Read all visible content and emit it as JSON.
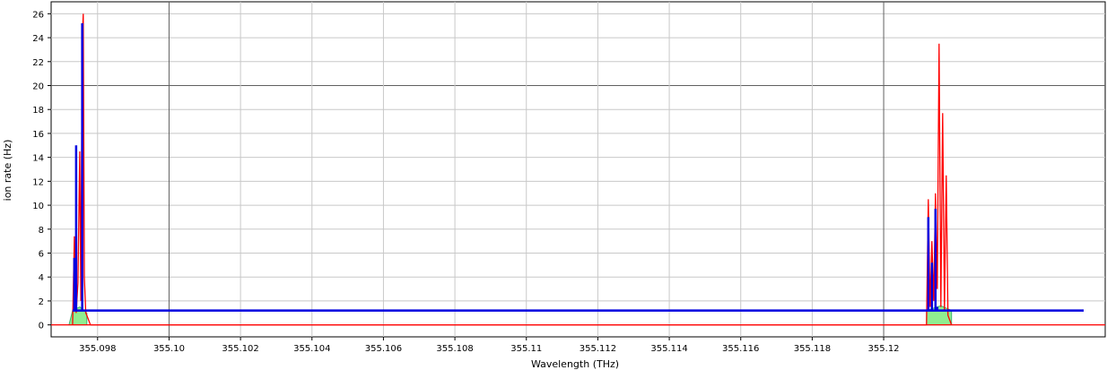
{
  "chart_data": {
    "type": "line",
    "xlabel": "Wavelength (THz)",
    "ylabel": "ion rate (Hz)",
    "xlim": [
      355.0967,
      355.1262
    ],
    "ylim": [
      -1,
      27
    ],
    "xticks": [
      355.098,
      355.1,
      355.102,
      355.104,
      355.106,
      355.108,
      355.11,
      355.112,
      355.114,
      355.116,
      355.118,
      355.12
    ],
    "xtick_labels": [
      "355.098",
      "355.10",
      "355.102",
      "355.104",
      "355.106",
      "355.108",
      "355.11",
      "355.112",
      "355.114",
      "355.116",
      "355.118",
      "355.12"
    ],
    "yticks": [
      0,
      2,
      4,
      6,
      8,
      10,
      12,
      14,
      16,
      18,
      20,
      22,
      24,
      26
    ],
    "ytick_labels": [
      "0",
      "2",
      "4",
      "6",
      "8",
      "10",
      "12",
      "14",
      "16",
      "18",
      "20",
      "22",
      "24",
      "26"
    ],
    "major_gridlines": {
      "x": [
        355.1,
        355.12
      ],
      "y": [
        20
      ]
    },
    "grid": true,
    "colors": {
      "red": "#ff0000",
      "blue": "#0000e0",
      "green_fill": "#90ee90",
      "green_edge": "#3cb371"
    },
    "series": [
      {
        "color": "red",
        "style": "line",
        "points": [
          [
            355.0973,
            0
          ],
          [
            355.09735,
            7.4
          ],
          [
            355.0974,
            1.0
          ],
          [
            355.09745,
            3.5
          ],
          [
            355.0975,
            14.5
          ],
          [
            355.09753,
            2.0
          ],
          [
            355.09757,
            24.0
          ],
          [
            355.0976,
            26.0
          ],
          [
            355.09763,
            4.0
          ],
          [
            355.09767,
            1.0
          ],
          [
            355.0977,
            0.8
          ],
          [
            355.0978,
            0
          ],
          [
            355.1212,
            0
          ],
          [
            355.12125,
            10.5
          ],
          [
            355.1213,
            1.5
          ],
          [
            355.12135,
            7.0
          ],
          [
            355.1214,
            2.0
          ],
          [
            355.12145,
            11.0
          ],
          [
            355.1215,
            3.0
          ],
          [
            355.12155,
            23.5
          ],
          [
            355.1216,
            1.5
          ],
          [
            355.12165,
            17.7
          ],
          [
            355.1217,
            1.2
          ],
          [
            355.12175,
            12.5
          ],
          [
            355.1218,
            0.8
          ],
          [
            355.1219,
            0
          ]
        ]
      },
      {
        "color": "blue",
        "style": "bars",
        "points": [
          [
            355.09735,
            5.6
          ],
          [
            355.0974,
            15.0
          ],
          [
            355.09757,
            25.2
          ],
          [
            355.12125,
            9.0
          ],
          [
            355.12135,
            5.2
          ],
          [
            355.12145,
            9.7
          ],
          [
            355.1215,
            1.5
          ]
        ]
      },
      {
        "color": "blue",
        "style": "baseline",
        "points": [
          [
            355.0973,
            1.2
          ],
          [
            355.1262,
            1.2
          ]
        ]
      },
      {
        "color": "green_fill",
        "style": "area",
        "points": [
          [
            355.0972,
            0
          ],
          [
            355.0973,
            1.2
          ],
          [
            355.0975,
            1.5
          ],
          [
            355.0977,
            1.0
          ],
          [
            355.0977,
            0
          ],
          [
            355.1212,
            0
          ],
          [
            355.1212,
            1.2
          ],
          [
            355.1216,
            1.6
          ],
          [
            355.1219,
            1.2
          ],
          [
            355.1219,
            0
          ]
        ]
      }
    ]
  }
}
